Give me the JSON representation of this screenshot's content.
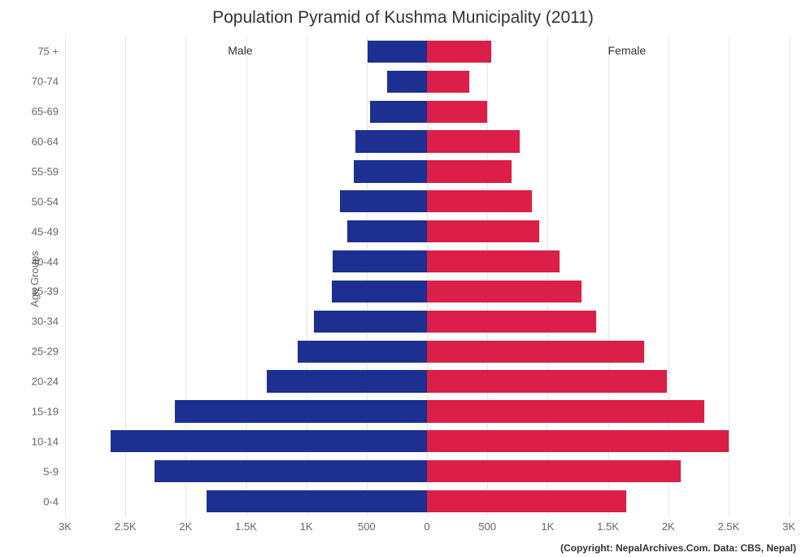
{
  "chart": {
    "type": "population-pyramid",
    "title": "Population Pyramid of Kushma Municipality (2011)",
    "title_fontsize": 21,
    "title_color": "#333333",
    "ylabel": "Age Groups",
    "ylabel_fontsize": 13,
    "background_color": "#ffffff",
    "grid_color": "#e6e6e6",
    "male_color": "#1d2f91",
    "female_color": "#db1f48",
    "male_label": "Male",
    "female_label": "Female",
    "series_label_fontsize": 14,
    "tick_fontsize": 13,
    "credit": "(Copyright: NepalArchives.Com. Data: CBS, Nepal)",
    "credit_fontsize": 12,
    "x_max": 3000,
    "x_ticks": [
      {
        "v": -3000,
        "label": "3K"
      },
      {
        "v": -2500,
        "label": "2.5K"
      },
      {
        "v": -2000,
        "label": "2K"
      },
      {
        "v": -1500,
        "label": "1.5K"
      },
      {
        "v": -1000,
        "label": "1K"
      },
      {
        "v": -500,
        "label": "500"
      },
      {
        "v": 0,
        "label": "0"
      },
      {
        "v": 500,
        "label": "500"
      },
      {
        "v": 1000,
        "label": "1K"
      },
      {
        "v": 1500,
        "label": "1.5K"
      },
      {
        "v": 2000,
        "label": "2K"
      },
      {
        "v": 2500,
        "label": "2.5K"
      },
      {
        "v": 3000,
        "label": "3K"
      }
    ],
    "bar_thickness_ratio": 0.74,
    "age_groups": [
      {
        "label": "75 +",
        "male": 490,
        "female": 530
      },
      {
        "label": "70-74",
        "male": 330,
        "female": 350
      },
      {
        "label": "65-69",
        "male": 470,
        "female": 500
      },
      {
        "label": "60-64",
        "male": 590,
        "female": 770
      },
      {
        "label": "55-59",
        "male": 610,
        "female": 700
      },
      {
        "label": "50-54",
        "male": 720,
        "female": 870
      },
      {
        "label": "45-49",
        "male": 660,
        "female": 930
      },
      {
        "label": "40-44",
        "male": 780,
        "female": 1100
      },
      {
        "label": "35-39",
        "male": 790,
        "female": 1280
      },
      {
        "label": "30-34",
        "male": 940,
        "female": 1400
      },
      {
        "label": "25-29",
        "male": 1070,
        "female": 1800
      },
      {
        "label": "20-24",
        "male": 1330,
        "female": 1990
      },
      {
        "label": "15-19",
        "male": 2090,
        "female": 2300
      },
      {
        "label": "10-14",
        "male": 2620,
        "female": 2500
      },
      {
        "label": "5-9",
        "male": 2260,
        "female": 2100
      },
      {
        "label": "0-4",
        "male": 1830,
        "female": 1650
      }
    ]
  }
}
